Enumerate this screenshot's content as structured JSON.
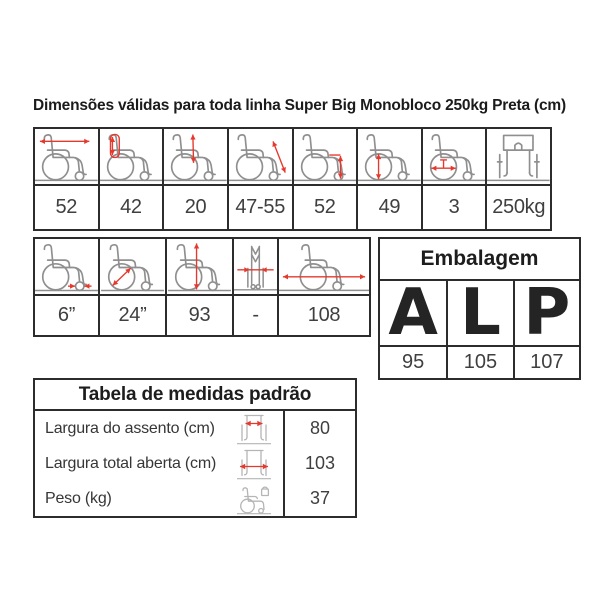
{
  "title": "Dimensões válidas para toda linha Super Big Monobloco 250kg Preta (cm)",
  "colors": {
    "accent_red": "#e6392e",
    "chair_gray": "#8f8f8f",
    "chair_gray_light": "#b5b5b5",
    "border_dark": "#2c2c2c"
  },
  "dim_table_row1": {
    "cells": [
      {
        "icon": "seat-depth-arrow-icon",
        "value": "52"
      },
      {
        "icon": "backrest-height-arrow-icon",
        "value": "42"
      },
      {
        "icon": "armrest-height-arrow-icon",
        "value": "20"
      },
      {
        "icon": "footrest-length-arrow-icon",
        "value": "47-55"
      },
      {
        "icon": "seat-floor-height-arrow-icon",
        "value": "52"
      },
      {
        "icon": "rear-wheel-height-arrow-icon",
        "value": "49"
      },
      {
        "icon": "axle-position-arrow-icon",
        "value": "3"
      },
      {
        "icon": "front-view-capacity-icon",
        "value": "250kg"
      }
    ]
  },
  "dim_table_row2": {
    "cells": [
      {
        "icon": "caster-size-arrow-icon",
        "value": "6”"
      },
      {
        "icon": "wheel-diameter-arrow-icon",
        "value": "24”"
      },
      {
        "icon": "total-height-arrow-icon",
        "value": "93"
      },
      {
        "icon": "folded-width-arrow-icon",
        "value": "-"
      },
      {
        "icon": "total-length-arrow-icon",
        "value": "108"
      }
    ]
  },
  "packaging": {
    "title": "Embalagem",
    "columns": [
      {
        "letter": "A",
        "value": "95"
      },
      {
        "letter": "L",
        "value": "105"
      },
      {
        "letter": "P",
        "value": "107"
      }
    ]
  },
  "standard_measures": {
    "title": "Tabela de medidas padrão",
    "rows": [
      {
        "label": "Largura do assento (cm)",
        "icon": "front-view-seat-width-icon",
        "value": "80"
      },
      {
        "label": "Largura total aberta (cm)",
        "icon": "front-view-total-width-icon",
        "value": "103"
      },
      {
        "label": "Peso (kg)",
        "icon": "chair-weight-icon",
        "value": "37"
      }
    ]
  }
}
